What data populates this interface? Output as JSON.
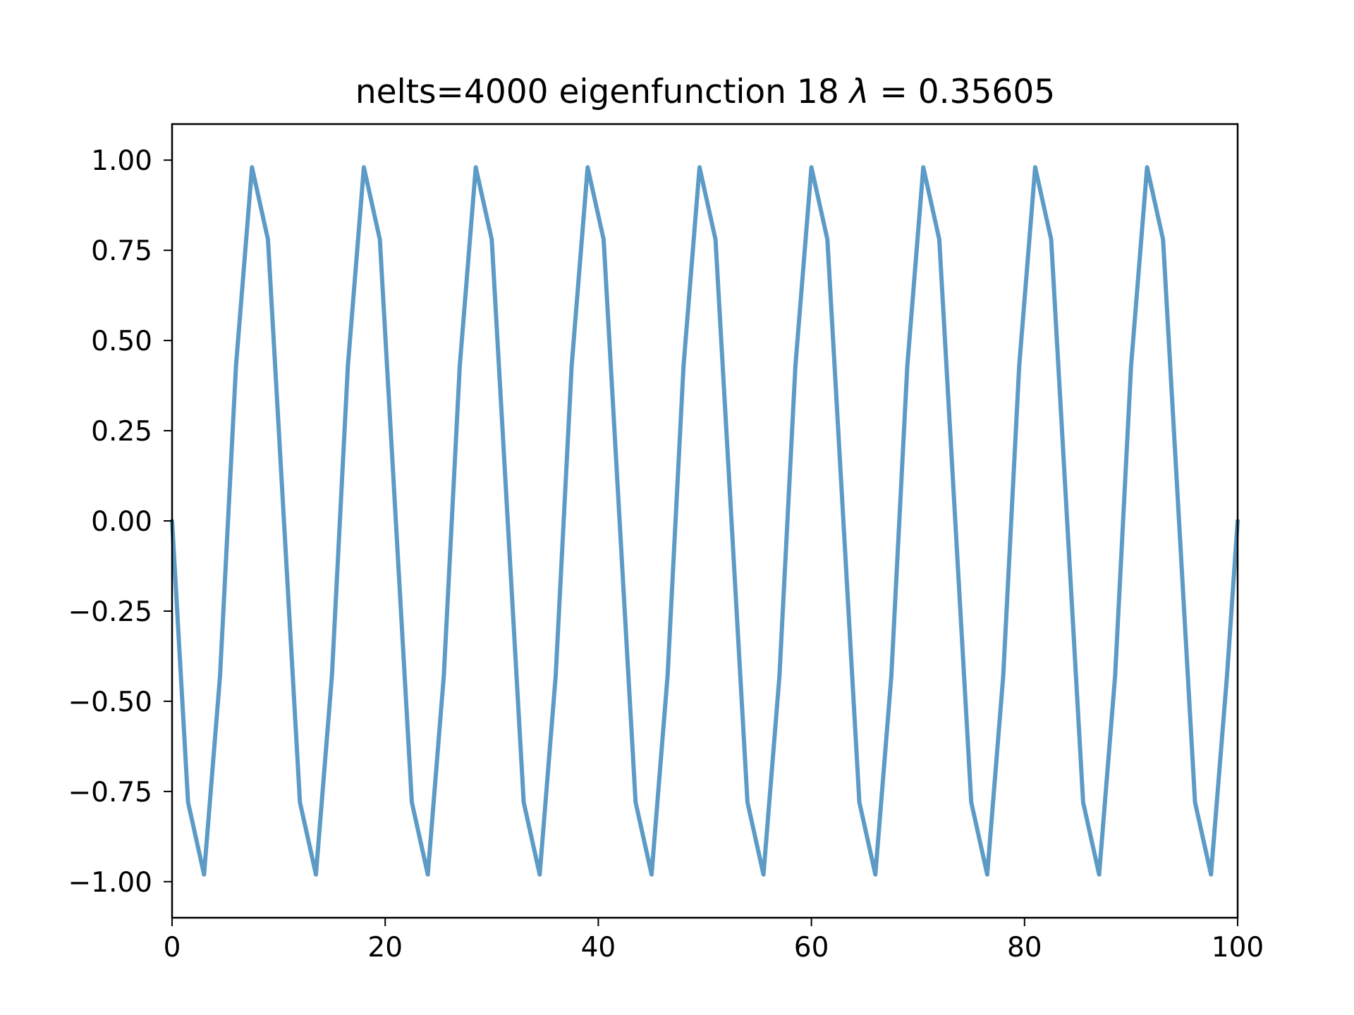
{
  "chart_data": {
    "type": "line",
    "title": {
      "prefix": "nelts=4000  eigenfunction 18  ",
      "lambda_symbol": "λ",
      "equals": " = ",
      "lambda_value": "0.35605"
    },
    "xlabel": "",
    "ylabel": "",
    "xlim": [
      0,
      100
    ],
    "ylim": [
      -1.1,
      1.1
    ],
    "grid": false,
    "legend": "none",
    "line_color": "#5b9bc6",
    "x_ticks": [
      {
        "value": 0,
        "label": "0"
      },
      {
        "value": 20,
        "label": "20"
      },
      {
        "value": 40,
        "label": "40"
      },
      {
        "value": 60,
        "label": "60"
      },
      {
        "value": 80,
        "label": "80"
      },
      {
        "value": 100,
        "label": "100"
      }
    ],
    "y_ticks": [
      {
        "value": 1.0,
        "label": "1.00"
      },
      {
        "value": 0.75,
        "label": "0.75"
      },
      {
        "value": 0.5,
        "label": "0.50"
      },
      {
        "value": 0.25,
        "label": "0.25"
      },
      {
        "value": 0.0,
        "label": "0.00"
      },
      {
        "value": -0.25,
        "label": "−0.25"
      },
      {
        "value": -0.5,
        "label": "−0.50"
      },
      {
        "value": -0.75,
        "label": "−0.75"
      },
      {
        "value": -1.0,
        "label": "−1.00"
      }
    ],
    "series": [
      {
        "x": [
          0,
          1.5,
          3,
          4.5,
          6,
          7.5,
          9,
          10.5,
          12,
          13.5,
          15,
          16.5,
          18,
          19.5,
          21,
          22.5,
          24,
          25.5,
          27,
          28.5,
          30,
          31.5,
          33,
          34.5,
          36,
          37.5,
          39,
          40.5,
          42,
          43.5,
          45,
          46.5,
          48,
          49.5,
          51,
          52.5,
          54,
          55.5,
          57,
          58.5,
          60,
          61.5,
          63,
          64.5,
          66,
          67.5,
          69,
          70.5,
          72,
          73.5,
          75,
          76.5,
          78,
          79.5,
          81,
          82.5,
          84,
          85.5,
          87,
          88.5,
          90,
          91.5,
          93,
          94.5,
          96,
          97.5,
          99,
          100
        ],
        "y": [
          0,
          -0.78,
          -0.98,
          -0.43,
          0.43,
          0.98,
          0.78,
          0,
          -0.78,
          -0.98,
          -0.43,
          0.43,
          0.98,
          0.78,
          0,
          -0.78,
          -0.98,
          -0.43,
          0.43,
          0.98,
          0.78,
          0,
          -0.78,
          -0.98,
          -0.43,
          0.43,
          0.98,
          0.78,
          0,
          -0.78,
          -0.98,
          -0.43,
          0.43,
          0.98,
          0.78,
          0,
          -0.78,
          -0.98,
          -0.43,
          0.43,
          0.98,
          0.78,
          0,
          -0.78,
          -0.98,
          -0.43,
          0.43,
          0.98,
          0.78,
          0,
          -0.78,
          -0.98,
          -0.43,
          0.43,
          0.98,
          0.78,
          0,
          -0.78,
          -0.98,
          -0.43,
          0.43,
          0.98,
          0.78,
          0,
          -0.78,
          -0.98,
          -0.43,
          0
        ]
      }
    ]
  }
}
